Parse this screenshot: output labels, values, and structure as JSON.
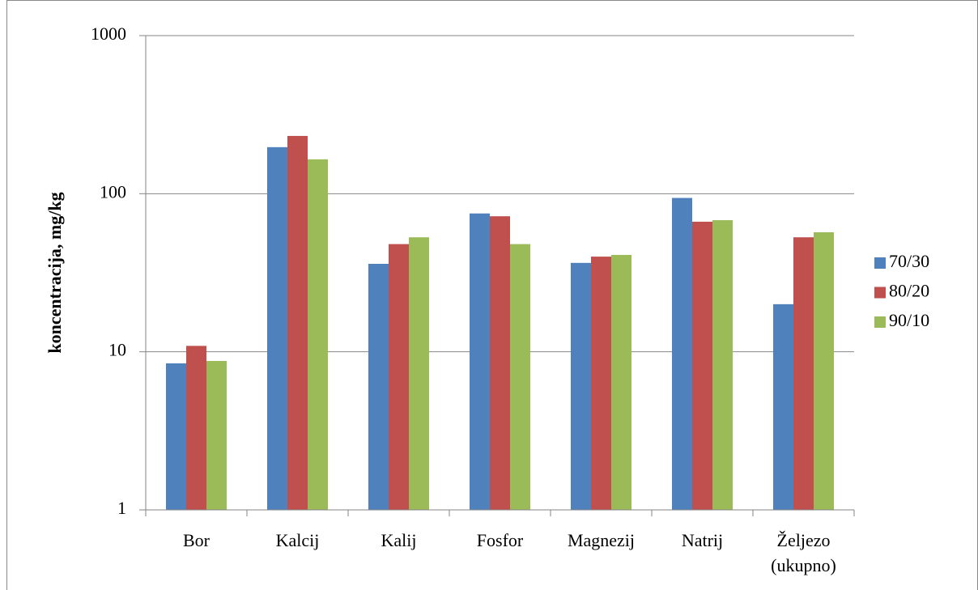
{
  "chart_data": {
    "type": "bar",
    "y_label": "koncentracija, mg/kg",
    "categories": [
      "Bor",
      "Kalcij",
      "Kalij",
      "Fosfor",
      "Magnezij",
      "Natrij",
      "Željezo\n(ukupno)"
    ],
    "series": [
      {
        "name": "70/30",
        "color": "#4f81bd",
        "values": [
          8.45,
          197,
          36,
          75,
          36.5,
          94,
          20
        ]
      },
      {
        "name": "80/20",
        "color": "#c0504d",
        "values": [
          10.9,
          232,
          48,
          72,
          40,
          66.5,
          53
        ]
      },
      {
        "name": "90/10",
        "color": "#9bbb59",
        "values": [
          8.75,
          165,
          53,
          48,
          41,
          68,
          57
        ]
      }
    ],
    "ylim": [
      1,
      1000
    ],
    "yticks": [
      1,
      10,
      100,
      1000
    ],
    "log_y": true,
    "grid": true,
    "legend": "right"
  }
}
